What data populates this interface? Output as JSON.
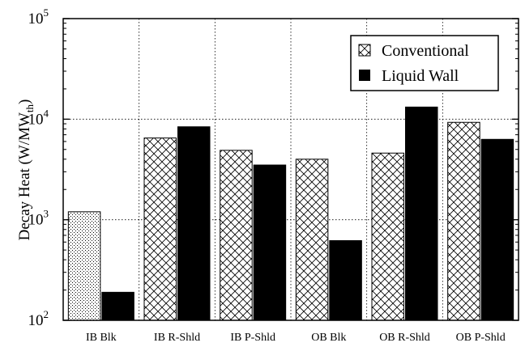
{
  "chart_data": {
    "type": "bar",
    "ylabel": "Decay Heat (W/MW",
    "ylabel_sub": "th",
    "ylabel_close": ")",
    "yscale": "log",
    "ylim": [
      100,
      100000
    ],
    "yticks": [
      {
        "value": 100,
        "base": "10",
        "exp": "2"
      },
      {
        "value": 1000,
        "base": "10",
        "exp": "3"
      },
      {
        "value": 10000,
        "base": "10",
        "exp": "4"
      },
      {
        "value": 100000,
        "base": "10",
        "exp": "5"
      }
    ],
    "categories": [
      "IB Blk",
      "IB R-Shld",
      "IB P-Shld",
      "OB Blk",
      "OB R-Shld",
      "OB P-Shld"
    ],
    "series": [
      {
        "name": "Conventional",
        "values": [
          1200,
          6500,
          4900,
          4000,
          4600,
          9300
        ]
      },
      {
        "name": "Liquid Wall",
        "values": [
          190,
          8400,
          3500,
          620,
          13200,
          6300
        ]
      }
    ],
    "grid": "dotted",
    "legend_position": "top-right"
  }
}
